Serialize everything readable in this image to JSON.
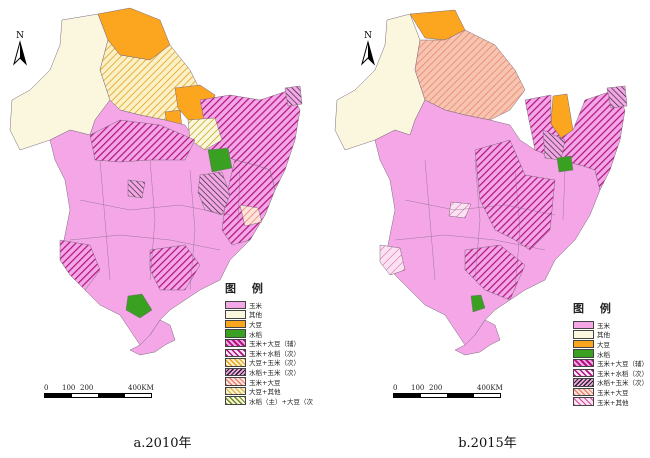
{
  "colors": {
    "corn": "#f4a6e7",
    "other": "#fbf7df",
    "soy": "#fca51e",
    "rice": "#3aa021",
    "outline": "#5a4a5a",
    "magenta_hatch": "#b0127e",
    "dark_hatch": "#222222",
    "orange_hatch": "#e8a020",
    "salmon_hatch": "#e8826e",
    "olive_hatch": "#b5a000"
  },
  "north_label": "N",
  "maps": [
    {
      "caption": "a.2010年",
      "legend": {
        "title": "图 例",
        "items": [
          {
            "label": "玉米",
            "swatch": "corn"
          },
          {
            "label": "其他",
            "swatch": "other"
          },
          {
            "label": "大豆",
            "swatch": "soy"
          },
          {
            "label": "水稻",
            "swatch": "rice"
          },
          {
            "label": "玉米+大豆（辅）",
            "swatch": "corn_soy"
          },
          {
            "label": "玉米+水稻（次）",
            "swatch": "corn_rice"
          },
          {
            "label": "大豆+玉米（次）",
            "swatch": "soy_corn"
          },
          {
            "label": "水稻+玉米（次）",
            "swatch": "rice_corn"
          },
          {
            "label": "玉米+大豆",
            "swatch": "corn_soy2"
          },
          {
            "label": "大豆+其他",
            "swatch": "soy_other"
          },
          {
            "label": "水稻（主）+大豆（次",
            "swatch": "rice_soy"
          }
        ]
      },
      "scale": {
        "labels": [
          "0",
          "100",
          "200",
          "400KM"
        ]
      }
    },
    {
      "caption": "b.2015年",
      "legend": {
        "title": "图 例",
        "items": [
          {
            "label": "玉米",
            "swatch": "corn"
          },
          {
            "label": "其他",
            "swatch": "other"
          },
          {
            "label": "大豆",
            "swatch": "soy"
          },
          {
            "label": "水稻",
            "swatch": "rice"
          },
          {
            "label": "玉米+大豆（辅）",
            "swatch": "corn_soy"
          },
          {
            "label": "玉米+水稻（次）",
            "swatch": "corn_rice"
          },
          {
            "label": "水稻+玉米（次）",
            "swatch": "rice_corn"
          },
          {
            "label": "玉米+大豆",
            "swatch": "corn_soy2"
          },
          {
            "label": "玉米+其他",
            "swatch": "corn_other"
          }
        ]
      },
      "scale": {
        "labels": [
          "0",
          "100",
          "200",
          "400KM"
        ]
      }
    }
  ]
}
